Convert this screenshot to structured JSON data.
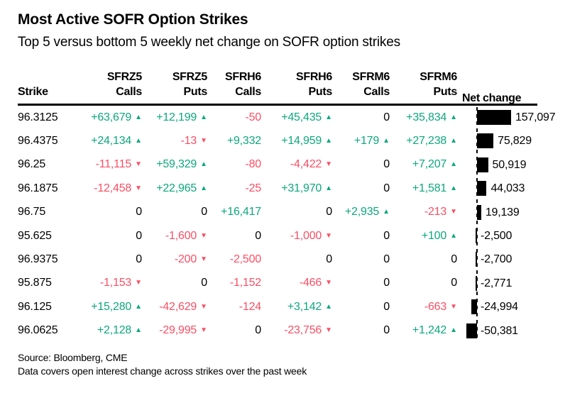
{
  "header": {
    "title": "Most Active SOFR Option Strikes",
    "subtitle": "Top 5 versus bottom 5 weekly net change on SOFR option strikes"
  },
  "icons": {
    "up_arrow": "▲",
    "down_arrow": "▼"
  },
  "colors": {
    "positive": "#0CA87C",
    "negative": "#FA4E64",
    "bar": "#000000",
    "text": "#000000"
  },
  "table": {
    "columns": [
      {
        "top": "",
        "bottom": "Strike"
      },
      {
        "top": "SFRZ5",
        "bottom": "Calls"
      },
      {
        "top": "SFRZ5",
        "bottom": "Puts"
      },
      {
        "top": "SFRH6",
        "bottom": "Calls"
      },
      {
        "top": "SFRH6",
        "bottom": "Puts"
      },
      {
        "top": "SFRM6",
        "bottom": "Calls"
      },
      {
        "top": "SFRM6",
        "bottom": "Puts"
      },
      {
        "top": "",
        "bottom": "Net change"
      }
    ],
    "rows": [
      {
        "strike": "96.3125",
        "cells": [
          {
            "text": "+63,679",
            "dir": "up"
          },
          {
            "text": "+12,199",
            "dir": "up"
          },
          {
            "text": "-50",
            "dir": ""
          },
          {
            "text": "+45,435",
            "dir": "up"
          },
          {
            "text": "0",
            "dir": ""
          },
          {
            "text": "+35,834",
            "dir": "up"
          }
        ],
        "net": 157097,
        "net_label": "157,097"
      },
      {
        "strike": "96.4375",
        "cells": [
          {
            "text": "+24,134",
            "dir": "up"
          },
          {
            "text": "-13",
            "dir": "down"
          },
          {
            "text": "+9,332",
            "dir": ""
          },
          {
            "text": "+14,959",
            "dir": "up"
          },
          {
            "text": "+179",
            "dir": "up"
          },
          {
            "text": "+27,238",
            "dir": "up"
          }
        ],
        "net": 75829,
        "net_label": "75,829"
      },
      {
        "strike": "96.25",
        "cells": [
          {
            "text": "-11,115",
            "dir": "down"
          },
          {
            "text": "+59,329",
            "dir": "up"
          },
          {
            "text": "-80",
            "dir": ""
          },
          {
            "text": "-4,422",
            "dir": "down"
          },
          {
            "text": "0",
            "dir": ""
          },
          {
            "text": "+7,207",
            "dir": "up"
          }
        ],
        "net": 50919,
        "net_label": "50,919"
      },
      {
        "strike": "96.1875",
        "cells": [
          {
            "text": "-12,458",
            "dir": "down"
          },
          {
            "text": "+22,965",
            "dir": "up"
          },
          {
            "text": "-25",
            "dir": ""
          },
          {
            "text": "+31,970",
            "dir": "up"
          },
          {
            "text": "0",
            "dir": ""
          },
          {
            "text": "+1,581",
            "dir": "up"
          }
        ],
        "net": 44033,
        "net_label": "44,033"
      },
      {
        "strike": "96.75",
        "cells": [
          {
            "text": "0",
            "dir": ""
          },
          {
            "text": "0",
            "dir": ""
          },
          {
            "text": "+16,417",
            "dir": ""
          },
          {
            "text": "0",
            "dir": ""
          },
          {
            "text": "+2,935",
            "dir": "up"
          },
          {
            "text": "-213",
            "dir": "down"
          }
        ],
        "net": 19139,
        "net_label": "19,139"
      },
      {
        "strike": "95.625",
        "cells": [
          {
            "text": "0",
            "dir": ""
          },
          {
            "text": "-1,600",
            "dir": "down"
          },
          {
            "text": "0",
            "dir": ""
          },
          {
            "text": "-1,000",
            "dir": "down"
          },
          {
            "text": "0",
            "dir": ""
          },
          {
            "text": "+100",
            "dir": "up"
          }
        ],
        "net": -2500,
        "net_label": "-2,500"
      },
      {
        "strike": "96.9375",
        "cells": [
          {
            "text": "0",
            "dir": ""
          },
          {
            "text": "-200",
            "dir": "down"
          },
          {
            "text": "-2,500",
            "dir": ""
          },
          {
            "text": "0",
            "dir": ""
          },
          {
            "text": "0",
            "dir": ""
          },
          {
            "text": "0",
            "dir": ""
          }
        ],
        "net": -2700,
        "net_label": "-2,700"
      },
      {
        "strike": "95.875",
        "cells": [
          {
            "text": "-1,153",
            "dir": "down"
          },
          {
            "text": "0",
            "dir": ""
          },
          {
            "text": "-1,152",
            "dir": ""
          },
          {
            "text": "-466",
            "dir": "down"
          },
          {
            "text": "0",
            "dir": ""
          },
          {
            "text": "0",
            "dir": ""
          }
        ],
        "net": -2771,
        "net_label": "-2,771"
      },
      {
        "strike": "96.125",
        "cells": [
          {
            "text": "+15,280",
            "dir": "up"
          },
          {
            "text": "-42,629",
            "dir": "down"
          },
          {
            "text": "-124",
            "dir": ""
          },
          {
            "text": "+3,142",
            "dir": "up"
          },
          {
            "text": "0",
            "dir": ""
          },
          {
            "text": "-663",
            "dir": "down"
          }
        ],
        "net": -24994,
        "net_label": "-24,994"
      },
      {
        "strike": "96.0625",
        "cells": [
          {
            "text": "+2,128",
            "dir": "up"
          },
          {
            "text": "-29,995",
            "dir": "down"
          },
          {
            "text": "0",
            "dir": ""
          },
          {
            "text": "-23,756",
            "dir": "down"
          },
          {
            "text": "0",
            "dir": ""
          },
          {
            "text": "+1,242",
            "dir": "up"
          }
        ],
        "net": -50381,
        "net_label": "-50,381"
      }
    ]
  },
  "chart_data": {
    "type": "table",
    "title": "Most Active SOFR Option Strikes",
    "subtitle": "Top 5 versus bottom 5 weekly net change on SOFR option strikes",
    "categories": [
      "96.3125",
      "96.4375",
      "96.25",
      "96.1875",
      "96.75",
      "95.625",
      "96.9375",
      "95.875",
      "96.125",
      "96.0625"
    ],
    "series": [
      {
        "name": "SFRZ5 Calls",
        "values": [
          63679,
          24134,
          -11115,
          -12458,
          0,
          0,
          0,
          -1153,
          15280,
          2128
        ]
      },
      {
        "name": "SFRZ5 Puts",
        "values": [
          12199,
          -13,
          59329,
          22965,
          0,
          -1600,
          -200,
          0,
          -42629,
          -29995
        ]
      },
      {
        "name": "SFRH6 Calls",
        "values": [
          -50,
          9332,
          -80,
          -25,
          16417,
          0,
          -2500,
          -1152,
          -124,
          0
        ]
      },
      {
        "name": "SFRH6 Puts",
        "values": [
          45435,
          14959,
          -4422,
          31970,
          0,
          -1000,
          0,
          -466,
          3142,
          -23756
        ]
      },
      {
        "name": "SFRM6 Calls",
        "values": [
          0,
          179,
          0,
          0,
          2935,
          0,
          0,
          0,
          0,
          0
        ]
      },
      {
        "name": "SFRM6 Puts",
        "values": [
          35834,
          27238,
          7207,
          1581,
          -213,
          100,
          0,
          0,
          -663,
          1242
        ]
      },
      {
        "name": "Net change",
        "values": [
          157097,
          75829,
          50919,
          44033,
          19139,
          -2500,
          -2700,
          -2771,
          -24994,
          -50381
        ]
      }
    ],
    "net_change_bars": {
      "type": "bar",
      "orientation": "horizontal",
      "max_abs_value": 157097,
      "bar_color": "#000000",
      "baseline": "dashed vertical line, positive bars extend right, negative bars extend left"
    }
  },
  "footer": {
    "source": "Source: Bloomberg, CME",
    "note": "Data covers open interest change across strikes over the past week"
  }
}
